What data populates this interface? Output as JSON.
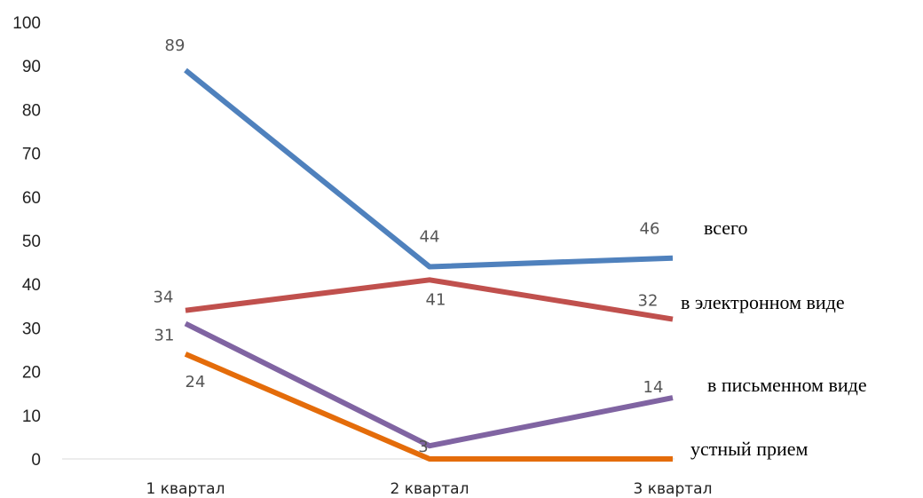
{
  "chart_data": {
    "type": "line",
    "categories": [
      "1 квартал",
      "2 квартал",
      "3 квартал"
    ],
    "ylim": [
      0,
      100
    ],
    "yticks": [
      0,
      10,
      20,
      30,
      40,
      50,
      60,
      70,
      80,
      90,
      100
    ],
    "grid": false,
    "legend": "labels at line ends (right)",
    "series": [
      {
        "name": "всего",
        "values": [
          89,
          44,
          46
        ],
        "color": "#4f81bd"
      },
      {
        "name": "в электронном виде",
        "values": [
          34,
          41,
          32
        ],
        "color": "#c0504d"
      },
      {
        "name": "в письменном виде",
        "values": [
          31,
          3,
          14
        ],
        "color": "#8064a2"
      },
      {
        "name": "устный прием",
        "values": [
          24,
          0,
          0
        ],
        "color": "#e46c0a"
      }
    ],
    "data_labels": [
      {
        "series": 0,
        "index": 0,
        "text": "89"
      },
      {
        "series": 0,
        "index": 1,
        "text": "44"
      },
      {
        "series": 0,
        "index": 2,
        "text": "46"
      },
      {
        "series": 1,
        "index": 0,
        "text": "34"
      },
      {
        "series": 1,
        "index": 1,
        "text": "41"
      },
      {
        "series": 1,
        "index": 2,
        "text": "32"
      },
      {
        "series": 2,
        "index": 0,
        "text": "31"
      },
      {
        "series": 2,
        "index": 1,
        "text": "3"
      },
      {
        "series": 2,
        "index": 2,
        "text": "14"
      },
      {
        "series": 3,
        "index": 0,
        "text": "24"
      }
    ]
  }
}
